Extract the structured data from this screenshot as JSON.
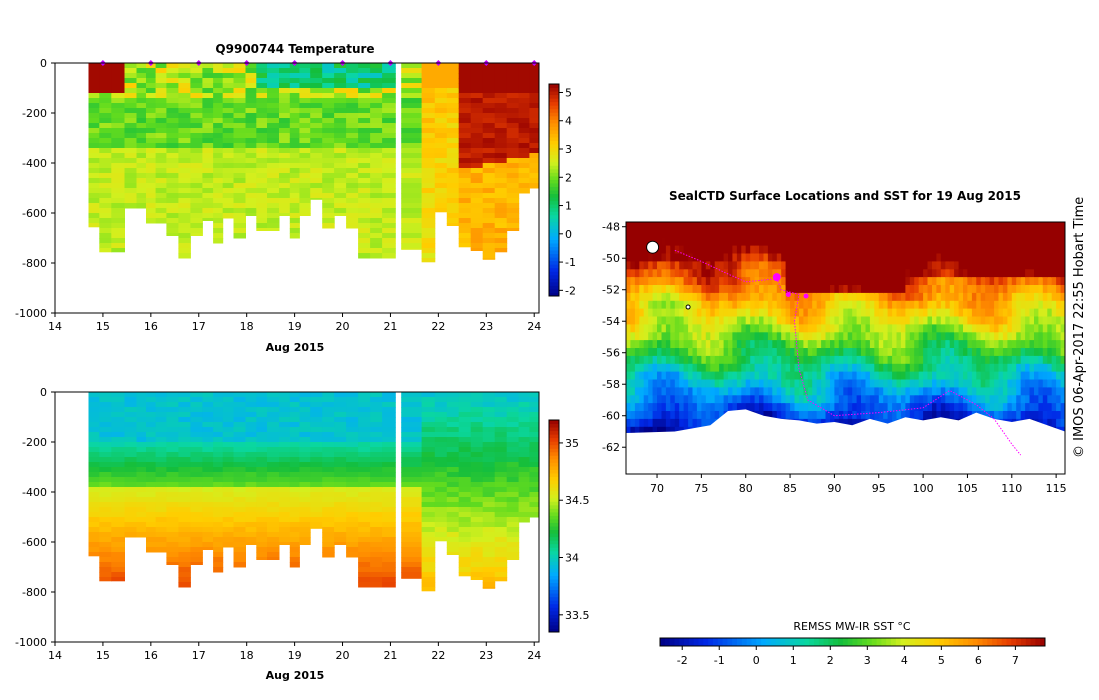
{
  "chart_data": [
    {
      "type": "heatmap",
      "title": "Q9900744  Temperature",
      "variable": "temperature",
      "xlabel": "Aug 2015",
      "x_ticks": [
        "14",
        "15",
        "16",
        "17",
        "18",
        "19",
        "20",
        "21",
        "22",
        "23",
        "24"
      ],
      "xlim": [
        14,
        24.1
      ],
      "y_ticks": [
        "0",
        "-200",
        "-400",
        "-600",
        "-800",
        "-1000"
      ],
      "ylim": [
        -1000,
        0
      ],
      "profile_times": [
        14.8,
        15.05,
        15.3,
        15.6,
        15.8,
        16.0,
        16.2,
        16.45,
        16.7,
        16.95,
        17.2,
        17.4,
        17.6,
        17.85,
        18.1,
        18.3,
        18.55,
        18.8,
        19.0,
        19.2,
        19.45,
        19.7,
        19.95,
        20.2,
        20.45,
        20.7,
        20.95,
        21.5,
        21.8,
        22.05,
        22.3,
        22.55,
        22.8,
        23.05,
        23.3,
        23.55,
        23.8,
        24.0
      ],
      "profile_max_depth": [
        -655,
        -755,
        -755,
        -580,
        -580,
        -640,
        -640,
        -690,
        -780,
        -690,
        -630,
        -720,
        -620,
        -700,
        -610,
        -670,
        -670,
        -610,
        -700,
        -610,
        -545,
        -660,
        -610,
        -660,
        -780,
        -780,
        -780,
        -745,
        -795,
        -595,
        -650,
        -735,
        -750,
        -785,
        -755,
        -670,
        -520,
        -500
      ],
      "gap_x_range": [
        21.15,
        21.5
      ],
      "colorbar": {
        "ticks": [
          "-2",
          "-1",
          "0",
          "1",
          "2",
          "3",
          "4",
          "5"
        ],
        "range": [
          -2.2,
          5.3
        ]
      },
      "surface_marker_times": [
        15,
        16,
        17,
        18,
        19,
        20,
        21,
        22,
        23,
        24
      ]
    },
    {
      "type": "heatmap",
      "title": "",
      "variable": "salinity",
      "xlabel": "Aug 2015",
      "x_ticks": [
        "14",
        "15",
        "16",
        "17",
        "18",
        "19",
        "20",
        "21",
        "22",
        "23",
        "24"
      ],
      "xlim": [
        14,
        24.1
      ],
      "y_ticks": [
        "0",
        "-200",
        "-400",
        "-600",
        "-800",
        "-1000"
      ],
      "ylim": [
        -1000,
        0
      ],
      "colorbar": {
        "ticks": [
          "33.5",
          "34",
          "34.5",
          "35"
        ],
        "range": [
          33.35,
          35.2
        ]
      }
    },
    {
      "type": "heatmap",
      "title": "SealCTD Surface Locations and SST for 19 Aug 2015",
      "x_ticks": [
        "70",
        "75",
        "80",
        "85",
        "90",
        "95",
        "100",
        "105",
        "110",
        "115"
      ],
      "xlim": [
        66.5,
        116
      ],
      "y_ticks": [
        "-48",
        "-50",
        "-52",
        "-54",
        "-56",
        "-58",
        "-60",
        "-62"
      ],
      "ylim": [
        -63.7,
        -47.7
      ],
      "colorbar": {
        "label": "REMSS MW-IR SST °C",
        "ticks": [
          "-2",
          "-1",
          "0",
          "1",
          "2",
          "3",
          "4",
          "5",
          "6",
          "7"
        ],
        "range": [
          -2.6,
          7.8
        ]
      },
      "track_points": [
        [
          72,
          -49.5
        ],
        [
          75,
          -50.2
        ],
        [
          78,
          -51
        ],
        [
          80,
          -51.5
        ],
        [
          83.5,
          -51.3
        ],
        [
          84,
          -52
        ],
        [
          86,
          -52.3
        ],
        [
          85.5,
          -54
        ],
        [
          86,
          -57
        ],
        [
          87,
          -59
        ],
        [
          90,
          -60
        ],
        [
          95,
          -59.8
        ],
        [
          100,
          -59.5
        ],
        [
          103,
          -58.4
        ],
        [
          106,
          -59.3
        ],
        [
          108,
          -60.2
        ],
        [
          110,
          -61.8
        ],
        [
          111,
          -62.5
        ]
      ],
      "track_markers": [
        [
          83.5,
          -51.2
        ],
        [
          84.8,
          -52.3
        ],
        [
          86.8,
          -52.4
        ]
      ]
    }
  ],
  "side_label": "© IMOS 06-Apr-2017 22:55 Hobart Time"
}
